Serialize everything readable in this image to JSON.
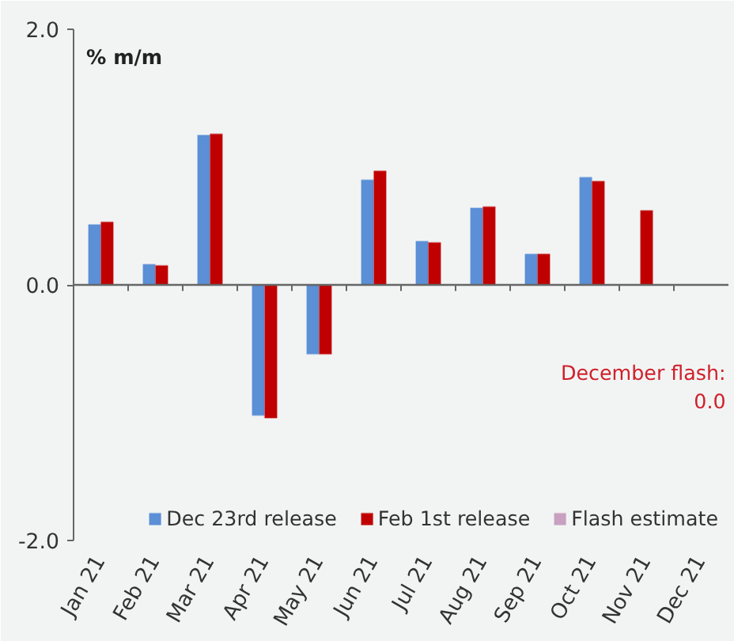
{
  "chart_data": {
    "type": "bar",
    "ylabel": "% m/m",
    "categories": [
      "Jan 21",
      "Feb 21",
      "Mar 21",
      "Apr 21",
      "May 21",
      "Jun 21",
      "Jul 21",
      "Aug 21",
      "Sep 21",
      "Oct 21",
      "Nov 21",
      "Dec 21"
    ],
    "series": [
      {
        "name": "Dec 23rd release",
        "color": "#5b8fd6",
        "values": [
          0.47,
          0.16,
          1.17,
          -1.02,
          -0.54,
          0.82,
          0.34,
          0.6,
          0.24,
          0.84,
          null,
          null
        ]
      },
      {
        "name": "Feb 1st release",
        "color": "#c00000",
        "values": [
          0.49,
          0.15,
          1.18,
          -1.04,
          -0.54,
          0.89,
          0.33,
          0.61,
          0.24,
          0.81,
          0.58,
          null
        ]
      },
      {
        "name": "Flash estimate",
        "color": "#c8a0c0",
        "values": [
          null,
          null,
          null,
          null,
          null,
          null,
          null,
          null,
          null,
          null,
          null,
          0.0
        ]
      }
    ],
    "ylim": [
      -2,
      2
    ],
    "yticks": [
      {
        "value": -2,
        "label": "-2.0"
      },
      {
        "value": 0,
        "label": "0.0"
      },
      {
        "value": 2,
        "label": "2.0"
      }
    ],
    "annotations": [
      "December flash:\n0.0"
    ],
    "legend": "bottom right"
  }
}
